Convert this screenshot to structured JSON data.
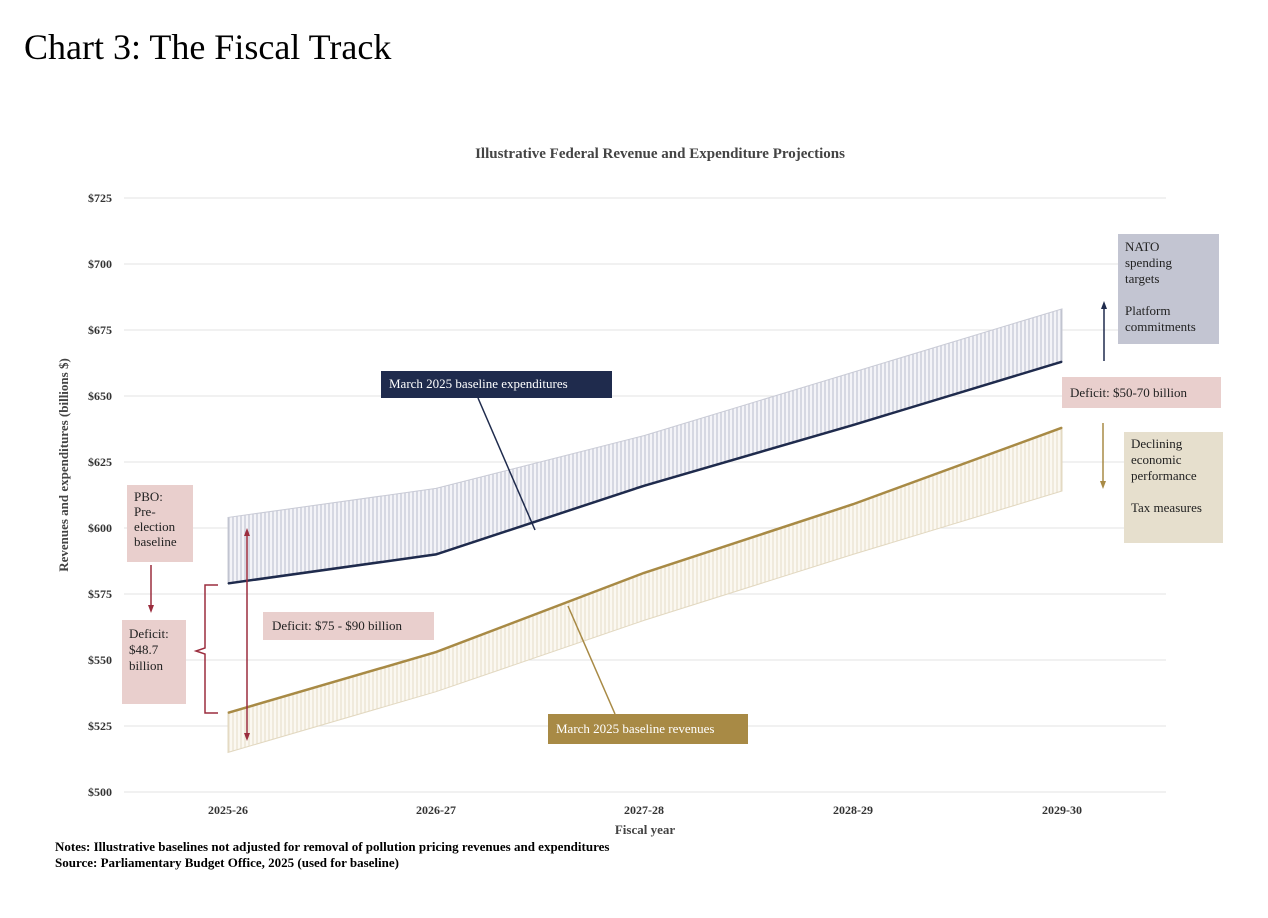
{
  "page": {
    "heading": "Chart 3: The Fiscal Track",
    "notes": "Notes: Illustrative baselines not adjusted for removal of pollution pricing revenues and expenditures",
    "source": "Source: Parliamentary Budget Office, 2025 (used for baseline)"
  },
  "colors": {
    "expenditure": "#1f2b4d",
    "revenue": "#a88a45",
    "expenditure_band": "#b9bccb",
    "revenue_band": "#e6dcc6",
    "deficit_box": "#e9cfcd",
    "deficit_arrow": "#9b2d3e",
    "nato_box": "#c3c5d2",
    "decline_box": "#e6dfcd"
  },
  "chart_data": {
    "type": "line",
    "title": "Illustrative Federal Revenue and Expenditure Projections",
    "xlabel": "Fiscal year",
    "ylabel": "Revenues and expenditures (billions $)",
    "categories": [
      "2025-26",
      "2026-27",
      "2027-28",
      "2028-29",
      "2029-30"
    ],
    "ylim": [
      500,
      725
    ],
    "yticks": [
      "$500",
      "$525",
      "$550",
      "$575",
      "$600",
      "$625",
      "$650",
      "$675",
      "$700",
      "$725"
    ],
    "grid": true,
    "series": [
      {
        "name": "March 2025 baseline expenditures",
        "values": [
          579,
          590,
          616,
          639,
          663
        ]
      },
      {
        "name": "March 2025 baseline revenues",
        "values": [
          530,
          553,
          583,
          609,
          638
        ]
      }
    ],
    "bands": [
      {
        "label": "expenditure range",
        "upper": [
          604,
          615,
          635,
          659,
          683
        ],
        "lower": [
          579,
          590,
          616,
          639,
          663
        ]
      },
      {
        "label": "revenue range",
        "upper": [
          530,
          553,
          583,
          609,
          638
        ],
        "lower": [
          515,
          538,
          565,
          590,
          614
        ]
      }
    ],
    "annotations": {
      "pbo": "PBO: Pre- election baseline",
      "pbo_lines": [
        "PBO:",
        "Pre-",
        "election",
        "baseline"
      ],
      "deficit_pbo_lines": [
        "Deficit:",
        "$48.7",
        "billion"
      ],
      "deficit_range": "Deficit: $75 - $90 billion",
      "deficit_2030": "Deficit: $50-70 billion",
      "exp_label": "March 2025 baseline expenditures",
      "rev_label": "March 2025 baseline revenues",
      "nato_lines": [
        "NATO",
        "spending",
        "targets"
      ],
      "platform_lines": [
        "Platform",
        "commitments"
      ],
      "decline_lines": [
        "Declining",
        "economic",
        "performance"
      ],
      "tax_lines": [
        "Tax measures"
      ]
    }
  }
}
